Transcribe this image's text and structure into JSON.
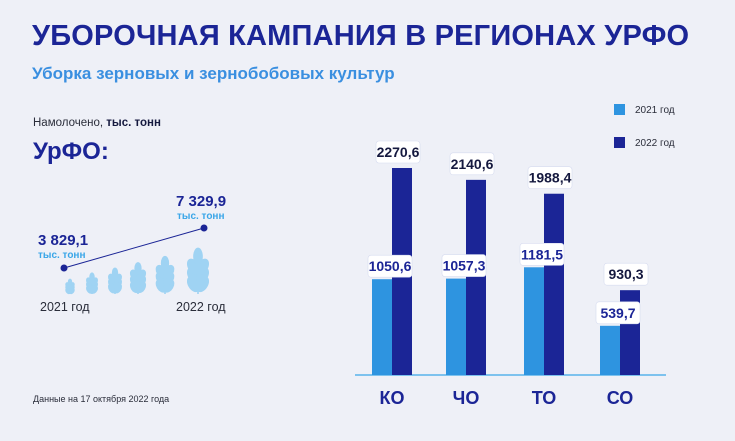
{
  "title": "УБОРОЧНАЯ КАМПАНИЯ В РЕГИОНАХ УРФО",
  "subtitle": "Уборка зерновых и зернобобовых культур",
  "caption_prefix": "Намолочено,",
  "caption_unit": "тыс. тонн",
  "region": "УрФО:",
  "summary": {
    "v2021": "3 829,1",
    "v2022": "7 329,9",
    "unit": "тыс. тонн",
    "label_2021": "2021 год",
    "label_2022": "2022 год"
  },
  "footnote": "Данные на 17 октября 2022 года",
  "colors": {
    "s2021": "#2e94e0",
    "s2022": "#1b2596",
    "accent": "#3aa6e8"
  },
  "icons": [
    "wheat-icon",
    "wheat-icon",
    "wheat-icon",
    "wheat-icon",
    "wheat-icon",
    "wheat-icon"
  ],
  "chart_data": {
    "type": "bar",
    "categories": [
      "КО",
      "ЧО",
      "ТО",
      "СО"
    ],
    "series": [
      {
        "name": "2021 год",
        "values": [
          1050.6,
          1057.3,
          1181.5,
          539.7
        ],
        "labels": [
          "1050,6",
          "1057,3",
          "1181,5",
          "539,7"
        ]
      },
      {
        "name": "2022 год",
        "values": [
          2270.6,
          2140.6,
          1988.4,
          930.3
        ],
        "labels": [
          "2270,6",
          "2140,6",
          "1988,4",
          "930,3"
        ]
      }
    ],
    "ylim": [
      0,
      2400
    ],
    "grid": false,
    "legend": "top-right"
  }
}
